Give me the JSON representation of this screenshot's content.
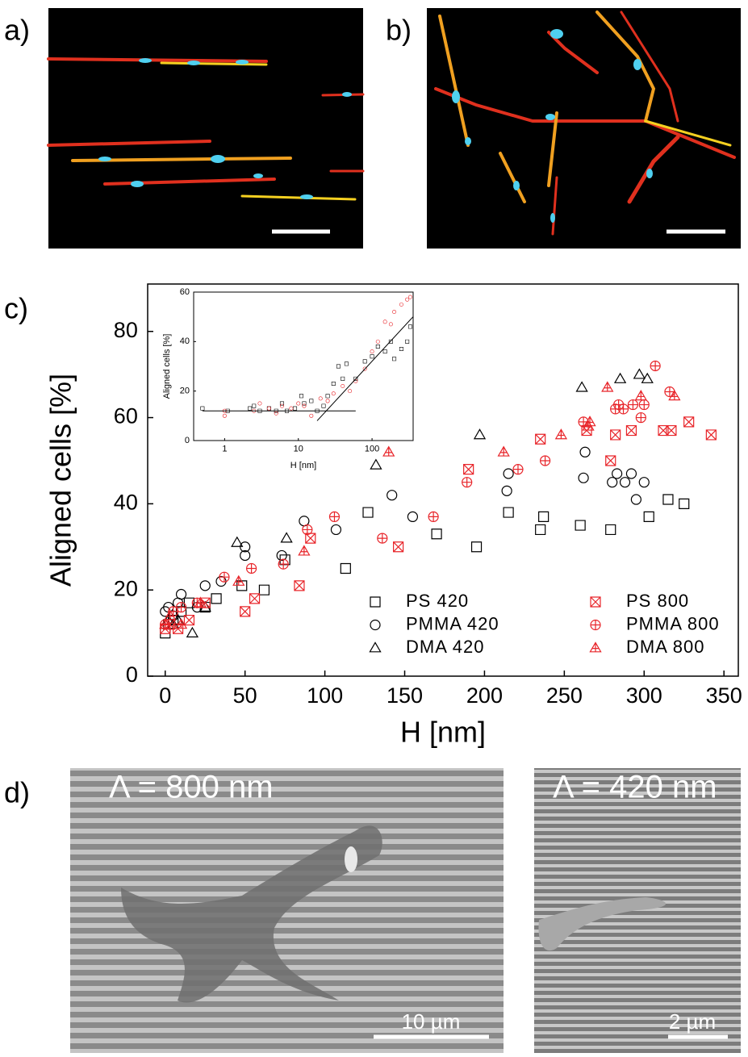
{
  "panels": {
    "a": {
      "label": "a)"
    },
    "b": {
      "label": "b)"
    },
    "c": {
      "label": "c)"
    },
    "d": {
      "label": "d)",
      "left": {
        "period": "Λ = 800 nm",
        "scale_bar": "10 µm"
      },
      "right": {
        "period": "Λ = 420 nm",
        "scale_bar": "2 µm"
      }
    }
  },
  "chart_data": [
    {
      "type": "scatter",
      "y_label": "Aligned cells [%]",
      "x_label": "H [nm]",
      "xlim": [
        -11,
        359
      ],
      "ylim": [
        0,
        91
      ],
      "xticks": [
        0,
        50,
        100,
        150,
        200,
        250,
        300,
        350
      ],
      "yticks": [
        0,
        20,
        40,
        60,
        80
      ],
      "legend": "lower right",
      "series": [
        {
          "name": "PS 420",
          "color": "#000000",
          "marker": "square",
          "x": [
            0,
            2,
            5,
            10,
            15,
            25,
            32,
            48,
            62,
            75,
            113,
            127,
            170,
            195,
            215,
            235,
            237,
            260,
            279,
            303,
            315,
            325
          ],
          "values": [
            10,
            12,
            13,
            15,
            17,
            16,
            18,
            21,
            20,
            27,
            25,
            38,
            33,
            30,
            38,
            34,
            37,
            35,
            34,
            37,
            41,
            40
          ]
        },
        {
          "name": "PMMA 420",
          "color": "#000000",
          "marker": "circle",
          "x": [
            0,
            2,
            5,
            8,
            10,
            20,
            25,
            35,
            50,
            50,
            73,
            87,
            107,
            142,
            155,
            214,
            215,
            262,
            263,
            280,
            283,
            288,
            292,
            295,
            300
          ],
          "values": [
            15,
            16,
            14,
            17,
            19,
            16,
            21,
            22,
            30,
            28,
            28,
            36,
            34,
            42,
            37,
            43,
            47,
            46,
            52,
            45,
            47,
            45,
            47,
            41,
            45
          ]
        },
        {
          "name": "DMA 420",
          "color": "#000000",
          "marker": "triangle",
          "x": [
            2,
            5,
            8,
            17,
            25,
            45,
            76,
            132,
            197,
            261,
            285,
            297,
            302
          ],
          "values": [
            13,
            12,
            13,
            10,
            16,
            31,
            32,
            49,
            56,
            67,
            69,
            70,
            69
          ]
        },
        {
          "name": "PS 800",
          "color": "#e8252a",
          "marker": "square-x",
          "x": [
            0,
            3,
            8,
            15,
            25,
            50,
            56,
            84,
            91,
            146,
            190,
            235,
            264,
            279,
            282,
            292,
            312,
            317,
            328,
            342
          ],
          "values": [
            11,
            12,
            11,
            13,
            17,
            15,
            18,
            21,
            32,
            30,
            48,
            55,
            57,
            50,
            56,
            57,
            57,
            57,
            59,
            56
          ]
        },
        {
          "name": "PMMA 800",
          "color": "#e8252a",
          "marker": "circle-plus",
          "x": [
            0,
            5,
            10,
            20,
            37,
            54,
            74,
            89,
            106,
            136,
            168,
            189,
            221,
            238,
            262,
            282,
            284,
            287,
            293,
            298,
            300,
            307,
            316
          ],
          "values": [
            12,
            15,
            16,
            17,
            23,
            25,
            26,
            34,
            37,
            32,
            37,
            45,
            48,
            50,
            59,
            62,
            63,
            62,
            63,
            60,
            63,
            72,
            66
          ]
        },
        {
          "name": "DMA 800",
          "color": "#e8252a",
          "marker": "triangle-plus",
          "x": [
            0,
            3,
            10,
            22,
            46,
            87,
            140,
            212,
            248,
            265,
            266,
            277,
            298,
            319
          ],
          "values": [
            12,
            14,
            12,
            17,
            22,
            29,
            52,
            52,
            56,
            58,
            59,
            67,
            65,
            65
          ]
        }
      ]
    },
    {
      "type": "scatter",
      "y_label": "Aligned cells [%]",
      "x_label": "H [nm]",
      "xscale": "log",
      "xlim": [
        0.38,
        361
      ],
      "ylim": [
        0,
        60
      ],
      "xticks": [
        1,
        10,
        100
      ],
      "yticks": [
        0,
        20,
        40,
        60
      ],
      "series": [
        {
          "color": "#000000",
          "marker": "square",
          "x": [
            0.5,
            1.1,
            2.2,
            2.5,
            3,
            4,
            5,
            6,
            7,
            9,
            11,
            12,
            15,
            18,
            22,
            25,
            30,
            35,
            40,
            45,
            60,
            80,
            100,
            120,
            150,
            180,
            200,
            250,
            300,
            330
          ],
          "values": [
            13,
            12,
            13,
            14,
            12,
            13,
            12,
            15,
            12,
            13,
            18,
            15,
            16,
            12,
            14,
            18,
            23,
            30,
            25,
            31,
            25,
            32,
            34,
            38,
            36,
            40,
            33,
            37,
            40,
            46
          ]
        },
        {
          "color": "#e8252a",
          "marker": "circle",
          "x": [
            1,
            1,
            2.5,
            3,
            4,
            5,
            6,
            8,
            10,
            12,
            15,
            20,
            25,
            30,
            40,
            50,
            60,
            80,
            100,
            120,
            150,
            180,
            200,
            250,
            300,
            330
          ],
          "values": [
            12,
            10,
            12,
            15,
            13,
            11,
            14,
            13,
            15,
            14,
            10,
            17,
            16,
            19,
            22,
            20,
            24,
            29,
            36,
            40,
            48,
            47,
            52,
            55,
            57,
            58
          ]
        },
        {
          "color": "#000000",
          "mode": "line",
          "x": [
            0.5,
            60
          ],
          "values": [
            12,
            12
          ]
        },
        {
          "color": "#000000",
          "mode": "line",
          "x": [
            18,
            360
          ],
          "values": [
            8,
            50
          ]
        }
      ]
    }
  ]
}
